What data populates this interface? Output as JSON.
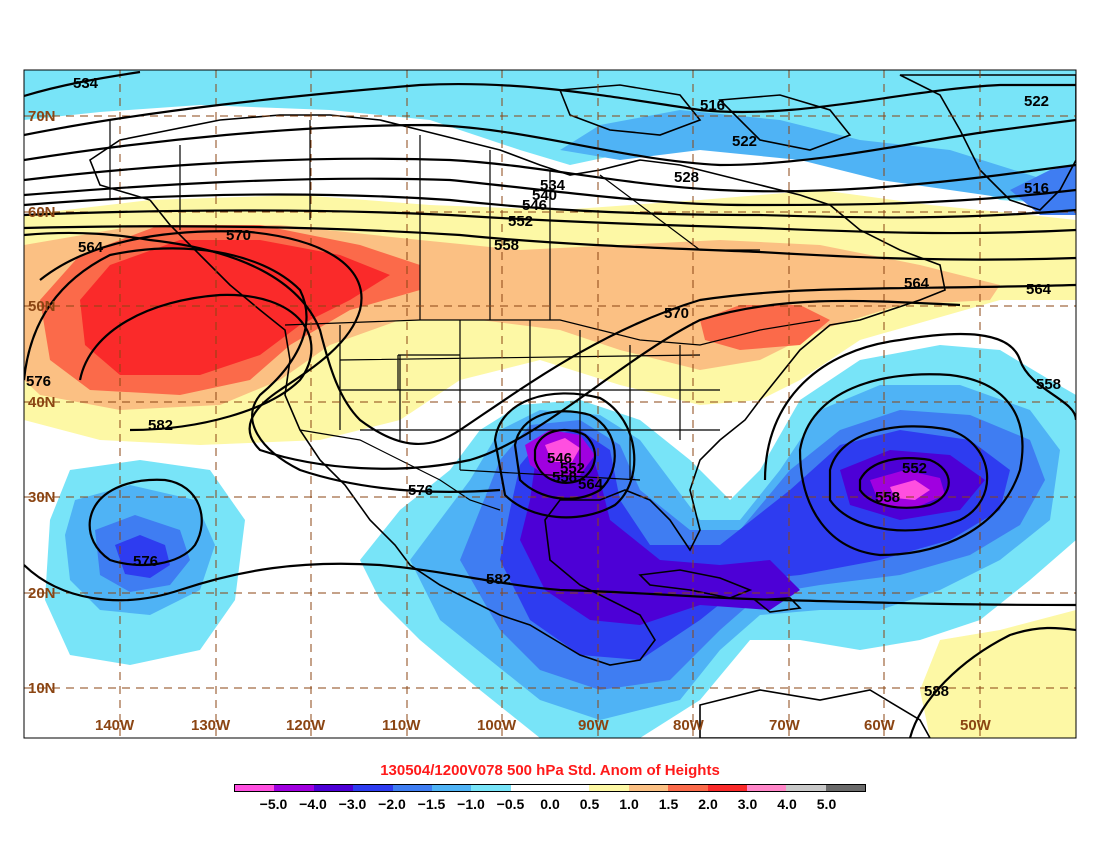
{
  "map": {
    "latitude_labels": [
      "70N",
      "60N",
      "50N",
      "40N",
      "30N",
      "20N",
      "10N"
    ],
    "longitude_labels": [
      "140W",
      "130W",
      "120W",
      "110W",
      "100W",
      "90W",
      "80W",
      "70W",
      "60W",
      "50W"
    ],
    "colors": {
      "anom_neg5": "#ff4fe0",
      "anom_neg4": "#a000e0",
      "anom_neg3": "#4d00d6",
      "anom_neg2": "#2e3cf0",
      "anom_neg1_5": "#3f7df2",
      "anom_neg1": "#4fb3f5",
      "anom_neg0_5": "#78e4f8",
      "anom_pos1": "#fdf8a5",
      "anom_pos1_5": "#fbc083",
      "anom_pos2": "#fb6a4a",
      "anom_pos3": "#fa2a2a",
      "grid": "#8b4513",
      "contour": "#000000",
      "boundary": "#000000"
    },
    "contour_labels": [
      {
        "text": "534"
      },
      {
        "text": "516"
      },
      {
        "text": "522"
      },
      {
        "text": "522"
      },
      {
        "text": "528"
      },
      {
        "text": "516"
      },
      {
        "text": "534"
      },
      {
        "text": "540"
      },
      {
        "text": "546"
      },
      {
        "text": "552"
      },
      {
        "text": "558"
      },
      {
        "text": "564"
      },
      {
        "text": "570"
      },
      {
        "text": "564"
      },
      {
        "text": "564"
      },
      {
        "text": "570"
      },
      {
        "text": "576"
      },
      {
        "text": "582"
      },
      {
        "text": "558"
      },
      {
        "text": "546"
      },
      {
        "text": "552"
      },
      {
        "text": "558"
      },
      {
        "text": "564"
      },
      {
        "text": "576"
      },
      {
        "text": "552"
      },
      {
        "text": "558"
      },
      {
        "text": "576"
      },
      {
        "text": "582"
      },
      {
        "text": "588"
      }
    ]
  },
  "legend": {
    "title": "130504/1200V078 500 hPa Std. Anom of Heights",
    "colors": [
      "#ff4fe0",
      "#a000e0",
      "#4d00d6",
      "#2e3cf0",
      "#3f7df2",
      "#4fb3f5",
      "#78e4f8",
      "#ffffff",
      "#ffffff",
      "#fdf8a5",
      "#fbc083",
      "#fb6a4a",
      "#fa2a2a",
      "#ff86c8",
      "#c8c8c8",
      "#6a6a6a"
    ],
    "tick_labels": [
      "−5.0",
      "−4.0",
      "−3.0",
      "−2.0",
      "−1.5",
      "−1.0",
      "−0.5",
      "0.0",
      "0.5",
      "1.0",
      "1.5",
      "2.0",
      "3.0",
      "4.0",
      "5.0"
    ]
  }
}
